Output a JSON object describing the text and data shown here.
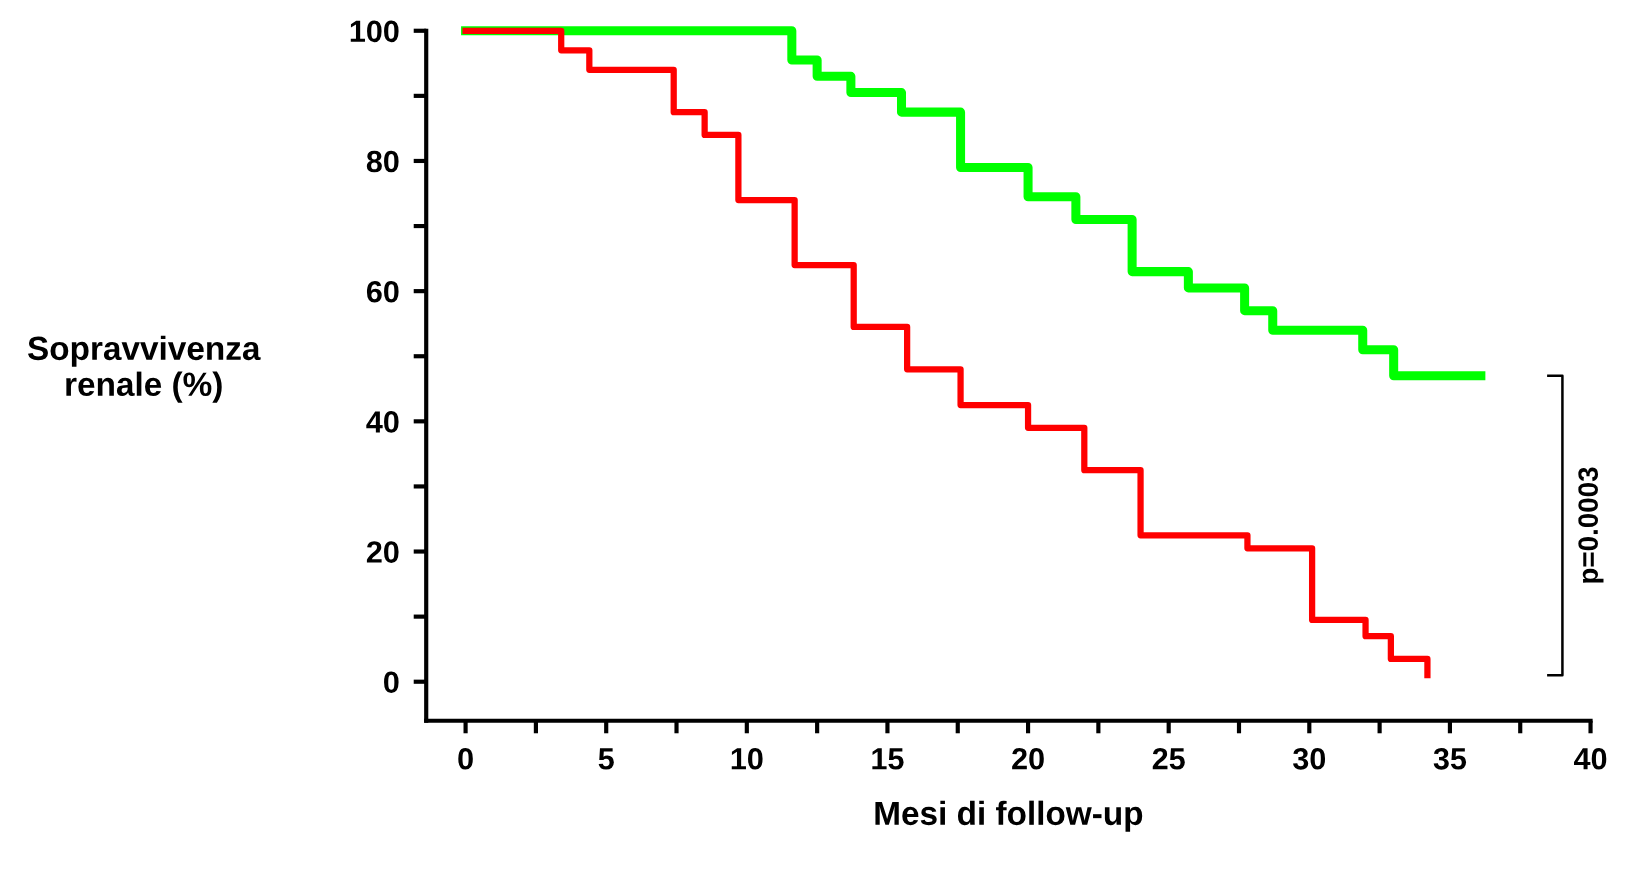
{
  "chart_data": {
    "type": "step",
    "xlabel": "Mesi di follow-up",
    "ylabel": "Sopravvivenza\nrenale (%)",
    "series": [
      {
        "color": "#00ff00",
        "x": [
          0,
          11.6,
          12.5,
          13.7,
          15.5,
          17.6,
          20,
          21.7,
          23.7,
          25.7,
          27.7,
          28.7,
          31.9,
          33,
          36.1
        ],
        "values": [
          100,
          95.5,
          93,
          90.5,
          87.5,
          79,
          74.5,
          71,
          63,
          60.5,
          57,
          54,
          51,
          47,
          47
        ]
      },
      {
        "color": "#ff0000",
        "x": [
          0,
          3.4,
          4.4,
          7.4,
          8.5,
          9.7,
          11.7,
          13.8,
          15.7,
          17.6,
          20,
          22,
          24,
          27.8,
          30.1,
          32,
          32.9,
          34.2
        ],
        "values": [
          100,
          97,
          94,
          87.5,
          84,
          74,
          64,
          54.5,
          48,
          42.5,
          39,
          32.5,
          22.5,
          20.5,
          9.5,
          7,
          3.5,
          1
        ]
      }
    ],
    "xlim": [
      -1.4,
      40
    ],
    "ylim": [
      -6,
      100
    ],
    "xticks": [
      0,
      {
        "value": 2.5,
        "label": null
      },
      5,
      {
        "value": 7.5,
        "label": null
      },
      10,
      {
        "value": 12.5,
        "label": null
      },
      15,
      {
        "value": 17.5,
        "label": null
      },
      20,
      {
        "value": 22.5,
        "label": null
      },
      25,
      {
        "value": 27.5,
        "label": null
      },
      30,
      {
        "value": 32.5,
        "label": null
      },
      35,
      {
        "value": 37.5,
        "label": null
      },
      40
    ],
    "yticks": [
      0,
      {
        "value": 10,
        "label": null
      },
      20,
      {
        "value": 30,
        "label": null
      },
      40,
      {
        "value": 50,
        "label": null
      },
      60,
      {
        "value": 70,
        "label": null
      },
      80,
      {
        "value": 90,
        "label": null
      },
      100
    ],
    "grid": false,
    "legend": false,
    "annotations": [
      "p=0.0003"
    ]
  }
}
